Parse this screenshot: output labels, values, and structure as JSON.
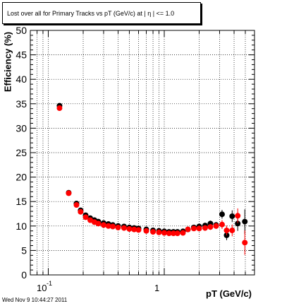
{
  "chart_data": {
    "type": "scatter",
    "title": "Lost over all for Primary Tracks vs pT (GeV/c) at | η | <= 1.0",
    "xlabel": "pT (GeV/c)",
    "ylabel": "Efficiency (%)",
    "xscale": "log",
    "xlim": [
      0.07,
      6
    ],
    "ylim": [
      0,
      50
    ],
    "y_ticks": [
      0,
      5,
      10,
      15,
      20,
      25,
      30,
      35,
      40,
      45,
      50
    ],
    "x_tick_labels": [
      "10",
      "-1",
      "1"
    ],
    "grid": true,
    "legend": "none",
    "series": [
      {
        "color": "#000000",
        "points": [
          {
            "x": 0.125,
            "y": 34.6,
            "err": 0.5
          },
          {
            "x": 0.15,
            "y": 16.8,
            "err": 0.3
          },
          {
            "x": 0.175,
            "y": 14.6,
            "err": 0.3
          },
          {
            "x": 0.19,
            "y": 13.2,
            "err": 0.3
          },
          {
            "x": 0.21,
            "y": 12.2,
            "err": 0.3
          },
          {
            "x": 0.23,
            "y": 11.6,
            "err": 0.2
          },
          {
            "x": 0.25,
            "y": 11.2,
            "err": 0.2
          },
          {
            "x": 0.27,
            "y": 10.9,
            "err": 0.2
          },
          {
            "x": 0.3,
            "y": 10.6,
            "err": 0.2
          },
          {
            "x": 0.33,
            "y": 10.4,
            "err": 0.2
          },
          {
            "x": 0.36,
            "y": 10.2,
            "err": 0.2
          },
          {
            "x": 0.4,
            "y": 10.0,
            "err": 0.2
          },
          {
            "x": 0.45,
            "y": 9.9,
            "err": 0.2
          },
          {
            "x": 0.5,
            "y": 9.7,
            "err": 0.2
          },
          {
            "x": 0.55,
            "y": 9.6,
            "err": 0.2
          },
          {
            "x": 0.6,
            "y": 9.5,
            "err": 0.2
          },
          {
            "x": 0.7,
            "y": 9.3,
            "err": 0.2
          },
          {
            "x": 0.8,
            "y": 9.1,
            "err": 0.2
          },
          {
            "x": 0.9,
            "y": 9.0,
            "err": 0.2
          },
          {
            "x": 1.0,
            "y": 8.9,
            "err": 0.2
          },
          {
            "x": 1.1,
            "y": 8.8,
            "err": 0.2
          },
          {
            "x": 1.2,
            "y": 8.8,
            "err": 0.2
          },
          {
            "x": 1.3,
            "y": 8.8,
            "err": 0.2
          },
          {
            "x": 1.45,
            "y": 8.9,
            "err": 0.3
          },
          {
            "x": 1.6,
            "y": 9.3,
            "err": 0.3
          },
          {
            "x": 1.8,
            "y": 9.7,
            "err": 0.4
          },
          {
            "x": 2.0,
            "y": 9.9,
            "err": 0.4
          },
          {
            "x": 2.25,
            "y": 10.1,
            "err": 0.5
          },
          {
            "x": 2.5,
            "y": 10.5,
            "err": 0.6
          },
          {
            "x": 2.8,
            "y": 10.2,
            "err": 0.6
          },
          {
            "x": 3.15,
            "y": 12.4,
            "err": 0.9
          },
          {
            "x": 3.45,
            "y": 8.1,
            "err": 1.0
          },
          {
            "x": 3.85,
            "y": 12.0,
            "err": 1.2
          },
          {
            "x": 4.3,
            "y": 10.5,
            "err": 1.5
          },
          {
            "x": 4.95,
            "y": 10.9,
            "err": 2.5
          }
        ]
      },
      {
        "color": "#ff0000",
        "points": [
          {
            "x": 0.125,
            "y": 34.1,
            "err": 0.5
          },
          {
            "x": 0.15,
            "y": 16.7,
            "err": 0.3
          },
          {
            "x": 0.175,
            "y": 14.3,
            "err": 0.3
          },
          {
            "x": 0.19,
            "y": 12.9,
            "err": 0.3
          },
          {
            "x": 0.21,
            "y": 11.8,
            "err": 0.3
          },
          {
            "x": 0.23,
            "y": 11.2,
            "err": 0.2
          },
          {
            "x": 0.25,
            "y": 10.8,
            "err": 0.2
          },
          {
            "x": 0.27,
            "y": 10.5,
            "err": 0.2
          },
          {
            "x": 0.3,
            "y": 10.2,
            "err": 0.2
          },
          {
            "x": 0.33,
            "y": 10.0,
            "err": 0.2
          },
          {
            "x": 0.36,
            "y": 9.9,
            "err": 0.2
          },
          {
            "x": 0.4,
            "y": 9.7,
            "err": 0.2
          },
          {
            "x": 0.45,
            "y": 9.6,
            "err": 0.2
          },
          {
            "x": 0.5,
            "y": 9.4,
            "err": 0.2
          },
          {
            "x": 0.55,
            "y": 9.3,
            "err": 0.2
          },
          {
            "x": 0.6,
            "y": 9.2,
            "err": 0.2
          },
          {
            "x": 0.7,
            "y": 9.0,
            "err": 0.2
          },
          {
            "x": 0.8,
            "y": 8.8,
            "err": 0.2
          },
          {
            "x": 0.9,
            "y": 8.7,
            "err": 0.2
          },
          {
            "x": 1.0,
            "y": 8.6,
            "err": 0.2
          },
          {
            "x": 1.1,
            "y": 8.5,
            "err": 0.2
          },
          {
            "x": 1.2,
            "y": 8.5,
            "err": 0.2
          },
          {
            "x": 1.3,
            "y": 8.5,
            "err": 0.2
          },
          {
            "x": 1.45,
            "y": 8.6,
            "err": 0.3
          },
          {
            "x": 1.6,
            "y": 9.3,
            "err": 0.3
          },
          {
            "x": 1.8,
            "y": 9.5,
            "err": 0.4
          },
          {
            "x": 2.0,
            "y": 9.5,
            "err": 0.4
          },
          {
            "x": 2.25,
            "y": 9.6,
            "err": 0.5
          },
          {
            "x": 2.5,
            "y": 9.8,
            "err": 0.6
          },
          {
            "x": 2.8,
            "y": 10.0,
            "err": 0.6
          },
          {
            "x": 3.15,
            "y": 10.3,
            "err": 0.9
          },
          {
            "x": 3.45,
            "y": 9.1,
            "err": 1.0
          },
          {
            "x": 3.85,
            "y": 9.1,
            "err": 1.2
          },
          {
            "x": 4.3,
            "y": 12.1,
            "err": 1.5
          },
          {
            "x": 4.95,
            "y": 6.6,
            "err": 2.5
          }
        ]
      }
    ]
  },
  "timestamp": "Wed Nov  9 10:44:27 2011"
}
